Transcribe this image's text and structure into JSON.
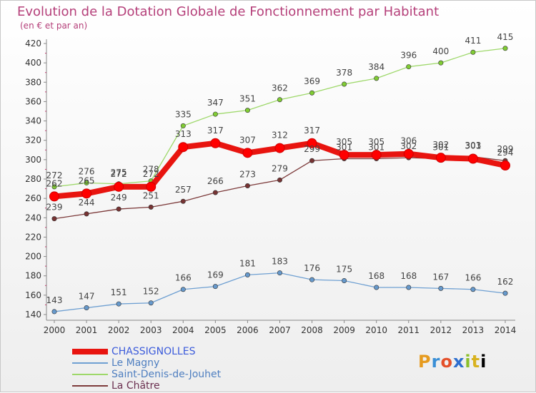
{
  "title": "Evolution de la Dotation Globale de Fonctionnement par Habitant",
  "subtitle": "(en € et par an)",
  "logo": [
    "P",
    "r",
    "o",
    "x",
    "i",
    "t",
    "i"
  ],
  "chart_data": {
    "type": "line",
    "title": "Evolution de la Dotation Globale de Fonctionnement par Habitant",
    "ylabel": "(en € et par an)",
    "xlabel": "",
    "x": [
      "2000",
      "2001",
      "2002",
      "2003",
      "2004",
      "2005",
      "2006",
      "2007",
      "2008",
      "2009",
      "2010",
      "2011",
      "2012",
      "2013",
      "2014"
    ],
    "yticks": [
      140,
      160,
      180,
      200,
      220,
      240,
      260,
      280,
      300,
      320,
      340,
      360,
      380,
      400,
      420
    ],
    "ylim": [
      140,
      420
    ],
    "grid": false,
    "legend_position": "bottom-left",
    "series": [
      {
        "name": "CHASSIGNOLLES",
        "color": "#ff0000",
        "line_color": "#e8140f",
        "values": [
          262,
          265,
          272,
          272,
          313,
          317,
          307,
          312,
          317,
          305,
          305,
          306,
          302,
          301,
          294
        ],
        "labels": [
          "262",
          "265",
          "272",
          "272",
          "313",
          "317",
          "307",
          "312",
          "317",
          "305",
          "305",
          "306",
          "302",
          "301",
          "294"
        ]
      },
      {
        "name": "Le Magny",
        "color": "#6699cc",
        "line_color": "#6fa0d2",
        "values": [
          143,
          147,
          151,
          152,
          166,
          169,
          181,
          183,
          176,
          175,
          168,
          168,
          167,
          166,
          162
        ],
        "labels": [
          "143",
          "147",
          "151",
          "152",
          "166",
          "169",
          "181",
          "183",
          "176",
          "175",
          "168",
          "168",
          "167",
          "166",
          "162"
        ]
      },
      {
        "name": "Saint-Denis-de-Jouhet",
        "color": "#80cc33",
        "line_color": "#9ed86a",
        "values": [
          272,
          276,
          275,
          278,
          335,
          347,
          351,
          362,
          369,
          378,
          384,
          396,
          400,
          411,
          415
        ],
        "labels": [
          "272",
          "276",
          "275",
          "278",
          "335",
          "347",
          "351",
          "362",
          "369",
          "378",
          "384",
          "396",
          "400",
          "411",
          "415"
        ]
      },
      {
        "name": "La Châtre",
        "color": "#773333",
        "line_color": "#7d3b3b",
        "values": [
          239,
          244,
          249,
          251,
          257,
          266,
          273,
          279,
          299,
          301,
          301,
          302,
          301,
          303,
          299
        ],
        "labels": [
          "239",
          "244",
          "249",
          "251",
          "257",
          "266",
          "273",
          "279",
          "299",
          "301",
          "301",
          "302",
          "301",
          "303",
          "299"
        ]
      }
    ]
  }
}
